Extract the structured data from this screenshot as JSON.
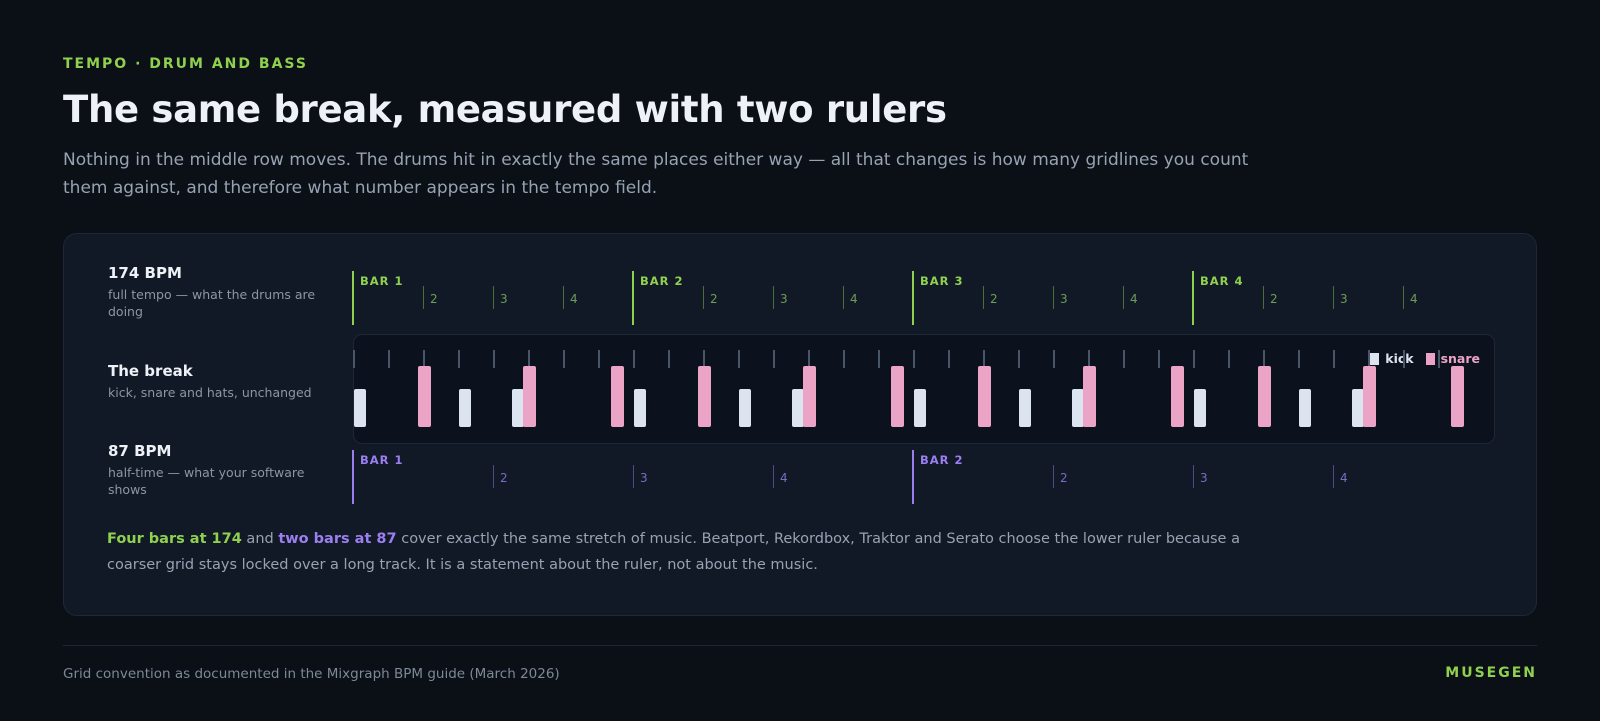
{
  "header": {
    "eyebrow": "TEMPO · DRUM AND BASS",
    "title": "The same break, measured with two rulers",
    "subtitle": "Nothing in the middle row moves. The drums hit in exactly the same places either way — all that changes is how many gridlines you count them against, and therefore what number appears in the tempo field."
  },
  "rows": {
    "top": {
      "title": "174 BPM",
      "desc": "full tempo — what the drums are doing"
    },
    "middle": {
      "title": "The break",
      "desc": "kick, snare and hats, unchanged"
    },
    "bottom": {
      "title": "87 BPM",
      "desc": "half-time — what your software shows"
    }
  },
  "ruler_174": {
    "bars": [
      "BAR 1",
      "BAR 2",
      "BAR 3",
      "BAR 4"
    ],
    "beats": [
      "2",
      "3",
      "4"
    ],
    "color": "#8fd14f"
  },
  "ruler_87": {
    "bars": [
      "BAR 1",
      "BAR 2"
    ],
    "beats": [
      "2",
      "3",
      "4"
    ],
    "color": "#9b7ff0"
  },
  "pattern": {
    "steps_per_bar": 16,
    "bars": 4,
    "hats_every_step": 2,
    "kick_steps": [
      0,
      6,
      9
    ],
    "snare_steps": [
      4,
      10,
      15
    ],
    "legend": {
      "kick": "kick",
      "snare": "snare"
    },
    "colors": {
      "kick": "#dbe4ef",
      "snare": "#eca4c6"
    }
  },
  "caption": {
    "em1": "Four bars at 174",
    "t1": " and ",
    "em2": "two bars at 87",
    "t2": " cover exactly the same stretch of music. Beatport, Rekordbox, Traktor and Serato choose the lower ruler because a coarser grid stays locked over a long track. It is a statement about the ruler, not about the music."
  },
  "footer": {
    "note": "Grid convention as documented in the Mixgraph BPM guide (March 2026)",
    "brand": "MUSEGEN"
  }
}
